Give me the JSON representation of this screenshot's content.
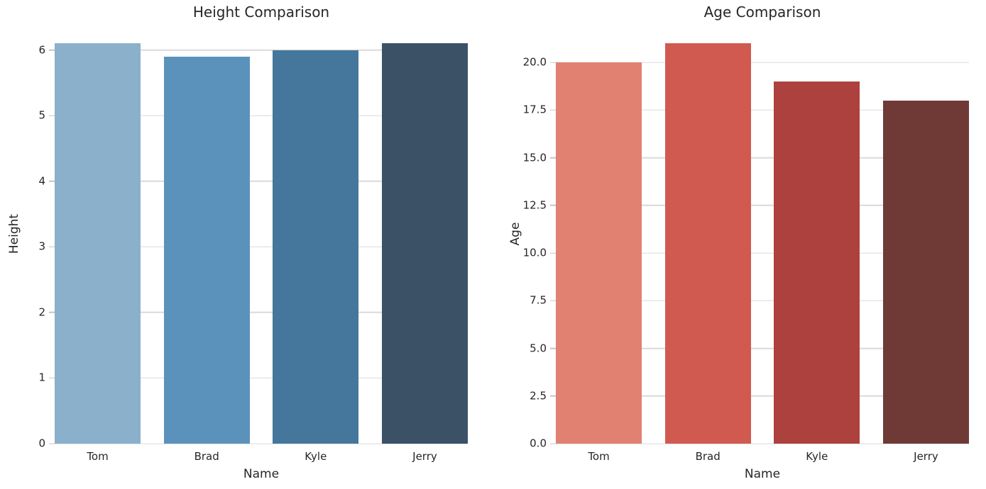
{
  "figure": {
    "background": "#ffffff",
    "text_color": "#262626",
    "grid_color": "#d9d9d9",
    "tick_color": "#c4c4c4"
  },
  "chart_data": [
    {
      "type": "bar",
      "title": "Height Comparison",
      "xlabel": "Name",
      "ylabel": "Height",
      "categories": [
        "Tom",
        "Brad",
        "Kyle",
        "Jerry"
      ],
      "values": [
        6.1,
        5.9,
        6.0,
        6.1
      ],
      "bar_colors": [
        "#8ab0cb",
        "#5b92bb",
        "#44779b",
        "#3a5166"
      ],
      "ylim": [
        0,
        6.405
      ],
      "yticks": [
        0,
        1,
        2,
        3,
        4,
        5,
        6
      ],
      "ytick_labels": [
        "0",
        "1",
        "2",
        "3",
        "4",
        "5",
        "6"
      ],
      "grid": true,
      "legend": false
    },
    {
      "type": "bar",
      "title": "Age Comparison",
      "xlabel": "Name",
      "ylabel": "Age",
      "categories": [
        "Tom",
        "Brad",
        "Kyle",
        "Jerry"
      ],
      "values": [
        20,
        21,
        19,
        18
      ],
      "bar_colors": [
        "#e08172",
        "#d05a50",
        "#ad413d",
        "#6f3a35"
      ],
      "ylim": [
        0,
        22.05
      ],
      "yticks": [
        0,
        2.5,
        5,
        7.5,
        10,
        12.5,
        15,
        17.5,
        20
      ],
      "ytick_labels": [
        "0.0",
        "2.5",
        "5.0",
        "7.5",
        "10.0",
        "12.5",
        "15.0",
        "17.5",
        "20.0"
      ],
      "grid": true,
      "legend": false
    }
  ]
}
